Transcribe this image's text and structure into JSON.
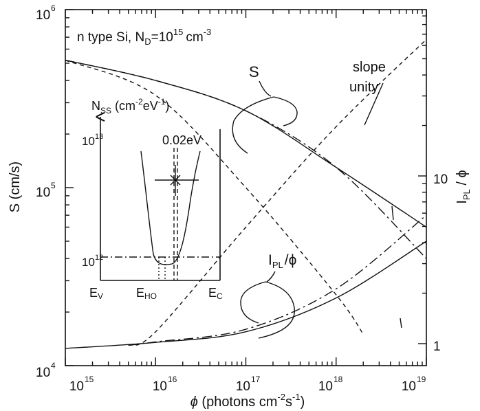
{
  "chart_data": {
    "type": "line",
    "annotation_material": "n type Si,  N",
    "annotation_material_sub": "D",
    "annotation_material_rest": "=10",
    "annotation_material_exp": "15",
    "annotation_material_unit": "cm",
    "annotation_material_unit_exp": "-3",
    "xlabel_symbol": "ϕ",
    "xlabel_text": "(photons cm",
    "xlabel_exp1": "-2",
    "xlabel_mid": "s",
    "xlabel_exp2": "-1",
    "xlabel_end": ")",
    "ylabel_left": "S  (cm/s)",
    "ylabel_right_main": "I",
    "ylabel_right_sub": "PL",
    "ylabel_right_end": " / ϕ",
    "x_scale": "log",
    "x_range": [
      1000000000000000.0,
      1e+19
    ],
    "x_ticks": [
      {
        "base": "10",
        "exp": "15",
        "value": 1000000000000000.0
      },
      {
        "base": "10",
        "exp": "16",
        "value": 1e+16
      },
      {
        "base": "10",
        "exp": "17",
        "value": 1e+17
      },
      {
        "base": "10",
        "exp": "18",
        "value": 1e+18
      },
      {
        "base": "10",
        "exp": "19",
        "value": 1e+19
      }
    ],
    "y_left_scale": "log",
    "y_left_range": [
      10000.0,
      1000000.0
    ],
    "y_left_ticks": [
      {
        "base": "10",
        "exp": "4",
        "value": 10000.0
      },
      {
        "base": "10",
        "exp": "5",
        "value": 100000.0
      },
      {
        "base": "10",
        "exp": "6",
        "value": 1000000.0
      }
    ],
    "y_right_scale": "log",
    "y_right_ticks": [
      {
        "label": "1",
        "value": 1
      },
      {
        "label": "10",
        "value": 10
      }
    ],
    "label_S": "S",
    "label_IPL_main": "I",
    "label_IPL_sub": "PL",
    "label_IPL_end": "/ϕ",
    "label_slope_1": "slope",
    "label_slope_2": "unity",
    "series": [
      {
        "group": "S",
        "style": "solid",
        "x": [
          1000000000000000.0,
          1e+16,
          1e+17,
          1e+18,
          1e+19
        ],
        "y": [
          520000,
          400000,
          270000,
          130000,
          60000
        ]
      },
      {
        "group": "S",
        "style": "dash-dot",
        "x": [
          1000000000000000.0,
          1e+16,
          1e+17,
          1e+18,
          1e+19
        ],
        "y": [
          520000,
          400000,
          270000,
          130000,
          40000
        ]
      },
      {
        "group": "S",
        "style": "dashed",
        "x": [
          1000000000000000.0,
          1e+16,
          1e+17,
          1e+18,
          2e+18
        ],
        "y": [
          520000,
          330000,
          100000,
          25000,
          15000
        ]
      },
      {
        "group": "IPL",
        "style": "solid",
        "x": [
          1000000000000000.0,
          1e+16,
          1e+17,
          1e+18,
          1e+19
        ],
        "y": [
          12500,
          13500,
          15500,
          24000,
          50000
        ]
      },
      {
        "group": "IPL",
        "style": "dash-dot",
        "x": [
          5000000000000000.0,
          1e+16,
          1e+17,
          1e+18,
          1e+19
        ],
        "y": [
          13000,
          13600,
          16000,
          27000,
          70000
        ]
      },
      {
        "group": "IPL",
        "style": "dashed",
        "x": [
          5000000000000000.0,
          1e+16,
          1e+17,
          1e+18,
          1e+19
        ],
        "y": [
          13000,
          15500,
          60000,
          220000,
          680000
        ]
      }
    ],
    "inset": {
      "ylabel_main": "N",
      "ylabel_sub": "SS",
      "ylabel_unit": "(cm",
      "ylabel_exp1": "-2",
      "ylabel_mid": "eV",
      "ylabel_exp2": "-1",
      "ylabel_end": ")",
      "y_ticks": [
        {
          "base": "10",
          "exp": "13"
        },
        {
          "base": "10",
          "exp": "12"
        }
      ],
      "x_tick_ev_main": "E",
      "x_tick_ev_sub": "V",
      "x_tick_eho_main": "E",
      "x_tick_eho_sub": "HO",
      "x_tick_ec_main": "E",
      "x_tick_ec_sub": "C",
      "annotation_width": "0.02eV"
    }
  }
}
